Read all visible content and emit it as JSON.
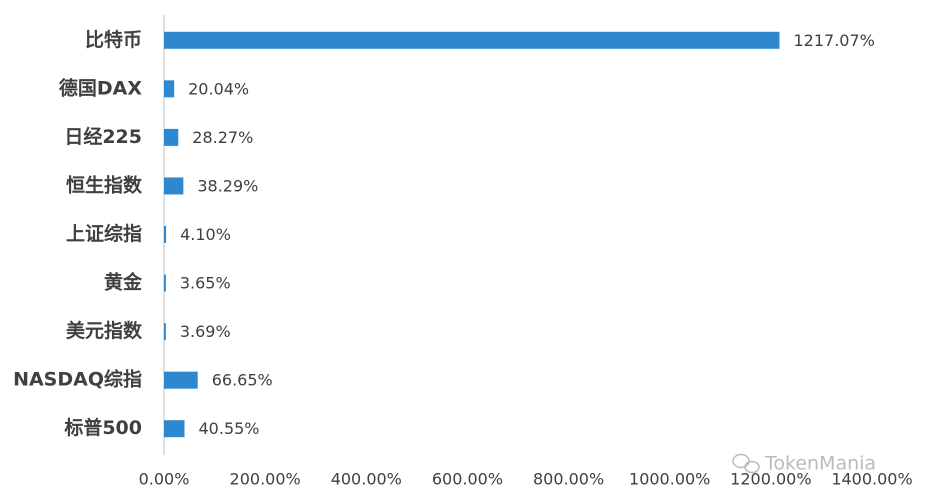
{
  "chart_data": {
    "type": "bar",
    "orientation": "horizontal",
    "categories": [
      "比特币",
      "德国DAX",
      "日经225",
      "恒生指数",
      "上证综指",
      "黄金",
      "美元指数",
      "NASDAQ综指",
      "标普500"
    ],
    "values": [
      1217.07,
      20.04,
      28.27,
      38.29,
      4.1,
      3.65,
      3.69,
      66.65,
      40.55
    ],
    "value_labels": [
      "1217.07%",
      "20.04%",
      "28.27%",
      "38.29%",
      "4.10%",
      "3.65%",
      "3.69%",
      "66.65%",
      "40.55%"
    ],
    "color": "#2e88cf",
    "xlim": [
      0,
      1400
    ],
    "xticks": [
      {
        "value": 0,
        "label": "0.00%"
      },
      {
        "value": 200,
        "label": "200.00%"
      },
      {
        "value": 400,
        "label": "400.00%"
      },
      {
        "value": 600,
        "label": "600.00%"
      },
      {
        "value": 800,
        "label": "800.00%"
      },
      {
        "value": 1000,
        "label": "1000.00%"
      },
      {
        "value": 1200,
        "label": "1200.00%"
      },
      {
        "value": 1400,
        "label": "1400.00%"
      }
    ],
    "grid": false,
    "watermark": "TokenMania"
  }
}
